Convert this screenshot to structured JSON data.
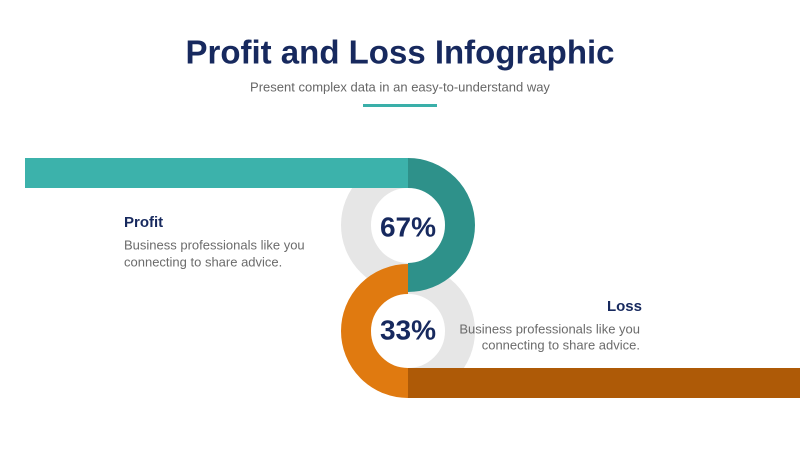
{
  "header": {
    "title": "Profit and Loss Infographic",
    "subtitle": "Present complex data in an easy-to-understand way"
  },
  "items": [
    {
      "label": "Profit",
      "percent": "67%",
      "description": [
        "Business professionals like you",
        "connecting to share advice."
      ]
    },
    {
      "label": "Loss",
      "percent": "33%",
      "description": [
        "Business professionals like you",
        "connecting to share advice."
      ]
    }
  ]
}
